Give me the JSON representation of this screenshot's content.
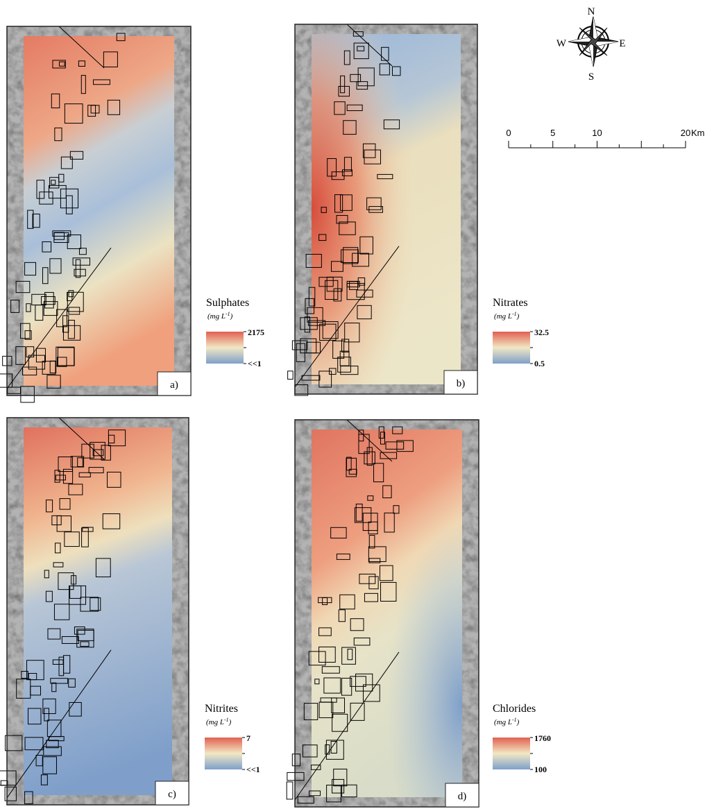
{
  "panels": [
    {
      "label": "a)",
      "legend_title": "Sulphates",
      "unit": {
        "base": "(mg L",
        "exponent": "-1",
        "close": ")"
      },
      "max": "2175",
      "min": "<<1"
    },
    {
      "label": "b)",
      "legend_title": "Nitrates",
      "unit": {
        "base": "(mg L",
        "exponent": "-1",
        "close": ")"
      },
      "max": "32.5",
      "min": "0.5"
    },
    {
      "label": "c)",
      "legend_title": "Nitrites",
      "unit": {
        "base": "(mg L",
        "exponent": "-1",
        "close": ")"
      },
      "max": "7",
      "min": "<<1"
    },
    {
      "label": "d)",
      "legend_title": "Chlorides",
      "unit": {
        "base": "(mg L",
        "exponent": "-1",
        "close": ")"
      },
      "max": "1760",
      "min": "100"
    }
  ],
  "compass": {
    "north": "N",
    "south": "S",
    "east": "E",
    "west": "W"
  },
  "scale_bar": {
    "labels": [
      "0",
      "5",
      "10",
      "20"
    ],
    "unit": "Km"
  }
}
